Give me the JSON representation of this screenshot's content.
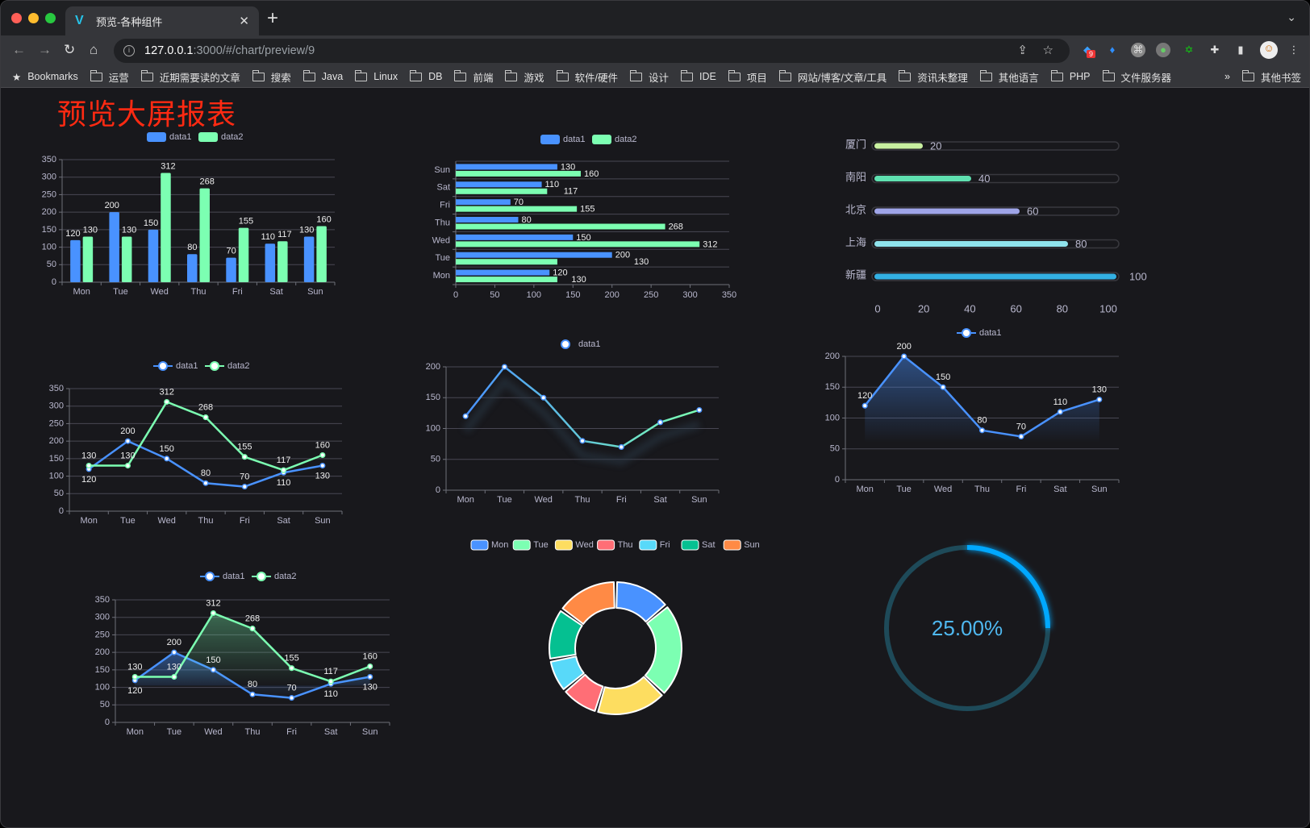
{
  "browser": {
    "tab_title": "预览-各种组件",
    "url_host": "127.0.0.1",
    "url_rest": ":3000/#/chart/preview/9",
    "extension_badge": "9",
    "bookmarks_label": "Bookmarks",
    "bookmarks": [
      "运营",
      "近期需要读的文章",
      "搜索",
      "Java",
      "Linux",
      "DB",
      "前端",
      "游戏",
      "软件/硬件",
      "设计",
      "IDE",
      "项目",
      "网站/博客/文章/工具",
      "资讯未整理",
      "其他语言",
      "PHP",
      "文件服务器"
    ],
    "overflow": "»",
    "other_bookmarks": "其他书签"
  },
  "page": {
    "title": "预览大屏报表"
  },
  "colors": {
    "data1": "#4992ff",
    "data2": "#7cffb2",
    "text": "#b9b8ce",
    "label": "#eeeeee",
    "grid": "#484753",
    "axis": "#6e7079"
  },
  "chart_data": [
    {
      "type": "bar",
      "orientation": "vertical",
      "categories": [
        "Mon",
        "Tue",
        "Wed",
        "Thu",
        "Fri",
        "Sat",
        "Sun"
      ],
      "series": [
        {
          "name": "data1",
          "values": [
            120,
            200,
            150,
            80,
            70,
            110,
            130
          ]
        },
        {
          "name": "data2",
          "values": [
            130,
            130,
            312,
            268,
            155,
            117,
            160
          ]
        }
      ],
      "ylim": [
        0,
        350
      ],
      "yticks": [
        "0",
        "50",
        "100",
        "150",
        "200",
        "250",
        "300",
        "350"
      ],
      "data_labels": true,
      "grid": true,
      "legend": "top"
    },
    {
      "type": "bar",
      "orientation": "horizontal",
      "categories": [
        "Mon",
        "Tue",
        "Wed",
        "Thu",
        "Fri",
        "Sat",
        "Sun"
      ],
      "series": [
        {
          "name": "data1",
          "values": [
            120,
            200,
            150,
            80,
            70,
            110,
            130
          ]
        },
        {
          "name": "data2",
          "values": [
            130,
            130,
            312,
            268,
            155,
            117,
            160
          ]
        }
      ],
      "xlim": [
        0,
        350
      ],
      "xticks": [
        "0",
        "50",
        "100",
        "150",
        "200",
        "250",
        "300",
        "350"
      ],
      "data_labels": true,
      "grid": true,
      "legend": "top"
    },
    {
      "type": "bar",
      "orientation": "horizontal",
      "style": "progress",
      "categories": [
        "厦门",
        "南阳",
        "北京",
        "上海",
        "新疆"
      ],
      "values": [
        20,
        40,
        60,
        80,
        100
      ],
      "colors": [
        "#c8f0a0",
        "#5fe0b0",
        "#9fa5e8",
        "#8fe3ec",
        "#33b0e3"
      ],
      "xlim": [
        0,
        100
      ],
      "xticks": [
        "0",
        "20",
        "40",
        "60",
        "80",
        "100"
      ],
      "data_labels": true
    },
    {
      "type": "line",
      "categories": [
        "Mon",
        "Tue",
        "Wed",
        "Thu",
        "Fri",
        "Sat",
        "Sun"
      ],
      "series": [
        {
          "name": "data1",
          "values": [
            120,
            200,
            150,
            80,
            70,
            110,
            130
          ]
        },
        {
          "name": "data2",
          "values": [
            130,
            130,
            312,
            268,
            155,
            117,
            160
          ]
        }
      ],
      "ylim": [
        0,
        350
      ],
      "yticks": [
        "0",
        "50",
        "100",
        "150",
        "200",
        "250",
        "300",
        "350"
      ],
      "data_labels": true,
      "grid": true,
      "legend": "top"
    },
    {
      "type": "line",
      "categories": [
        "Mon",
        "Tue",
        "Wed",
        "Thu",
        "Fri",
        "Sat",
        "Sun"
      ],
      "series": [
        {
          "name": "data1",
          "values": [
            120,
            200,
            150,
            80,
            70,
            110,
            130
          ]
        }
      ],
      "ylim": [
        0,
        200
      ],
      "yticks": [
        "0",
        "50",
        "100",
        "150",
        "200"
      ],
      "data_labels": false,
      "grid": true,
      "legend": "top",
      "gradient": [
        "#4992ff",
        "#7cffb2"
      ]
    },
    {
      "type": "area",
      "categories": [
        "Mon",
        "Tue",
        "Wed",
        "Thu",
        "Fri",
        "Sat",
        "Sun"
      ],
      "series": [
        {
          "name": "data1",
          "values": [
            120,
            200,
            150,
            80,
            70,
            110,
            130
          ]
        }
      ],
      "ylim": [
        0,
        200
      ],
      "yticks": [
        "0",
        "50",
        "100",
        "150",
        "200"
      ],
      "data_labels": true,
      "grid": true,
      "legend": "top"
    },
    {
      "type": "area",
      "categories": [
        "Mon",
        "Tue",
        "Wed",
        "Thu",
        "Fri",
        "Sat",
        "Sun"
      ],
      "series": [
        {
          "name": "data1",
          "values": [
            120,
            200,
            150,
            80,
            70,
            110,
            130
          ]
        },
        {
          "name": "data2",
          "values": [
            130,
            130,
            312,
            268,
            155,
            117,
            160
          ]
        }
      ],
      "ylim": [
        0,
        350
      ],
      "yticks": [
        "0",
        "50",
        "100",
        "150",
        "200",
        "250",
        "300",
        "350"
      ],
      "data_labels": true,
      "grid": true,
      "legend": "top"
    },
    {
      "type": "pie",
      "style": "donut",
      "categories": [
        "Mon",
        "Tue",
        "Wed",
        "Thu",
        "Fri",
        "Sat",
        "Sun"
      ],
      "values": [
        120,
        200,
        150,
        80,
        70,
        110,
        130
      ],
      "colors": [
        "#4992ff",
        "#7cffb2",
        "#fddd60",
        "#ff6e76",
        "#58d9f9",
        "#05c091",
        "#ff8a45"
      ],
      "legend": "top"
    },
    {
      "type": "gauge",
      "value": 25,
      "max": 100,
      "label": "25.00%",
      "color": "#00a8ff",
      "track_color": "#1e4a59"
    }
  ]
}
